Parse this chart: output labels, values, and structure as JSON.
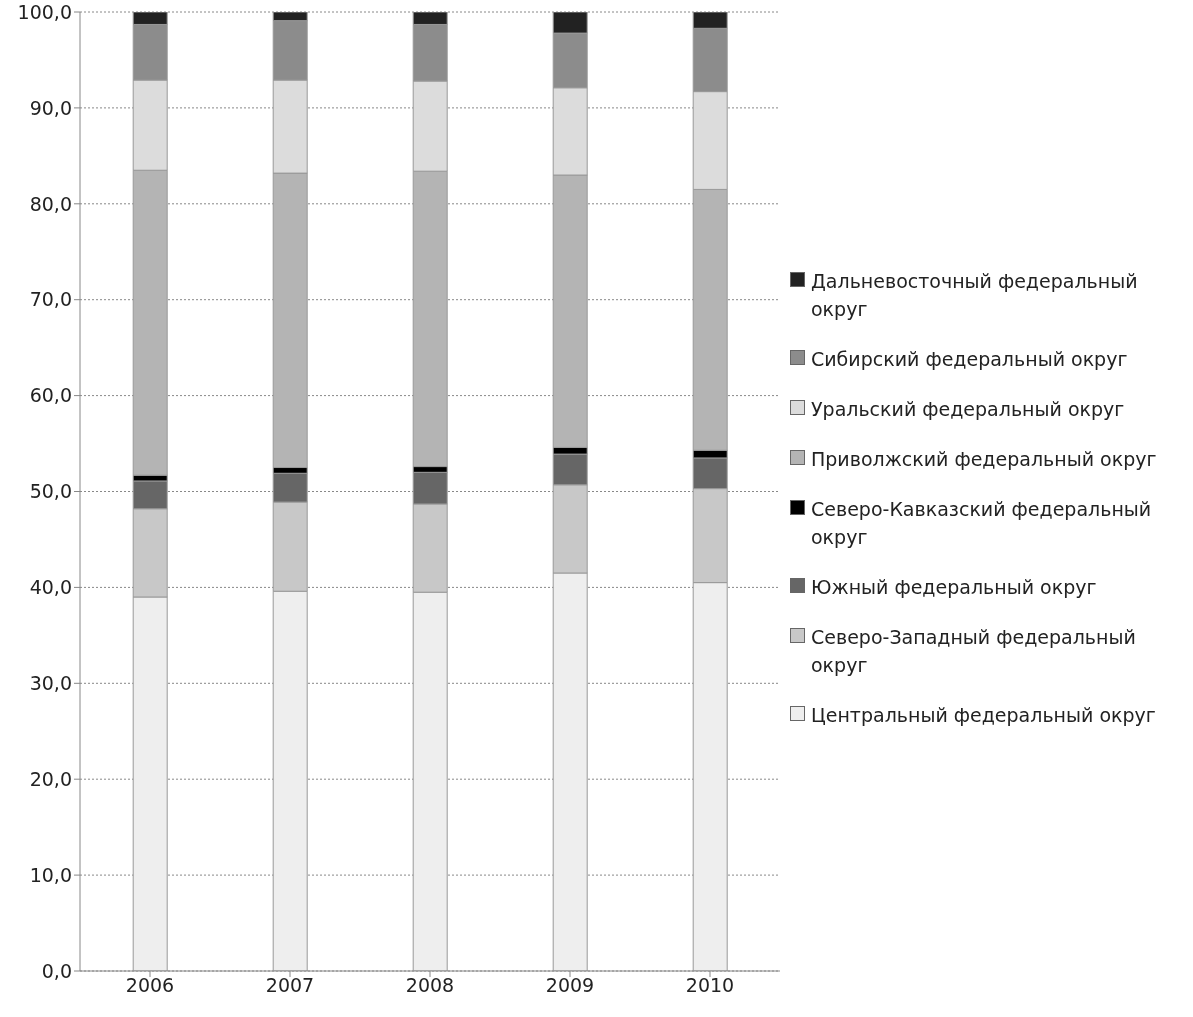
{
  "chart_data": {
    "type": "bar",
    "stacked": true,
    "categories": [
      "2006",
      "2007",
      "2008",
      "2009",
      "2010"
    ],
    "series": [
      {
        "name": "Центральный федеральный округ",
        "color": "#eeeeee",
        "values": [
          39.0,
          39.6,
          39.5,
          41.5,
          40.5
        ]
      },
      {
        "name": "Северо-Западный федеральный округ",
        "color": "#c8c8c8",
        "values": [
          9.2,
          9.3,
          9.2,
          9.2,
          9.8
        ]
      },
      {
        "name": "Южный федеральный округ",
        "color": "#666666",
        "values": [
          2.9,
          3.0,
          3.3,
          3.2,
          3.2
        ]
      },
      {
        "name": "Северо-Кавказский федеральный округ",
        "color": "#000000",
        "values": [
          0.6,
          0.6,
          0.6,
          0.7,
          0.8
        ]
      },
      {
        "name": "Приволжский федеральный округ",
        "color": "#b4b4b4",
        "values": [
          31.8,
          30.7,
          30.8,
          28.4,
          27.2
        ]
      },
      {
        "name": "Уральский федеральный округ",
        "color": "#dcdcdc",
        "values": [
          9.4,
          9.7,
          9.4,
          9.1,
          10.2
        ]
      },
      {
        "name": "Сибирский федеральный округ",
        "color": "#8c8c8c",
        "values": [
          5.8,
          6.2,
          5.9,
          5.7,
          6.6
        ]
      },
      {
        "name": "Дальневосточный федеральный округ",
        "color": "#222222",
        "values": [
          1.3,
          0.9,
          1.3,
          2.2,
          1.7
        ]
      }
    ],
    "ylim": [
      0,
      100
    ],
    "yticks": [
      {
        "value": 0,
        "label": "0,0"
      },
      {
        "value": 10,
        "label": "10,0"
      },
      {
        "value": 20,
        "label": "20,0"
      },
      {
        "value": 30,
        "label": "30,0"
      },
      {
        "value": 40,
        "label": "40,0"
      },
      {
        "value": 50,
        "label": "50,0"
      },
      {
        "value": 60,
        "label": "60,0"
      },
      {
        "value": 70,
        "label": "70,0"
      },
      {
        "value": 80,
        "label": "80,0"
      },
      {
        "value": 90,
        "label": "90,0"
      },
      {
        "value": 100,
        "label": "100,0"
      }
    ],
    "grid": "y",
    "legend": "right"
  }
}
